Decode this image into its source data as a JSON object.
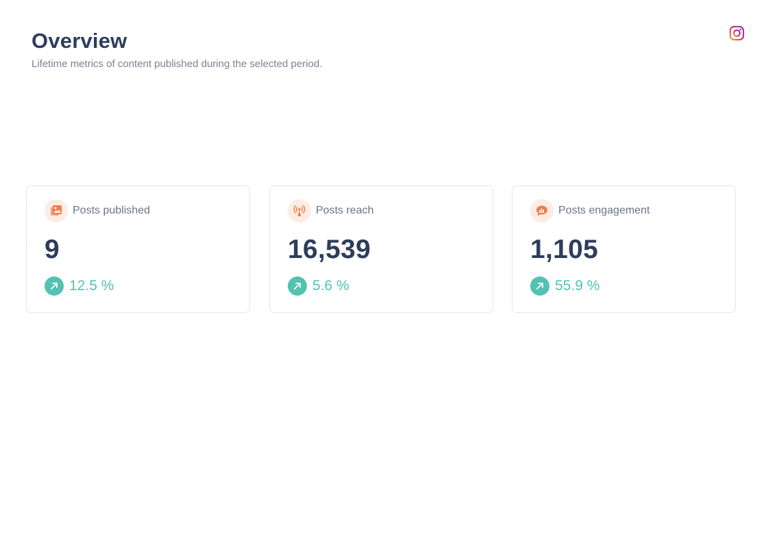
{
  "header": {
    "title": "Overview",
    "subtitle": "Lifetime metrics of content published during the selected period.",
    "platform_icon": "instagram-icon"
  },
  "metrics": [
    {
      "label": "Posts published",
      "value": "9",
      "change": "12.5 %",
      "trend": "up",
      "icon": "image-gallery-icon"
    },
    {
      "label": "Posts reach",
      "value": "16,539",
      "change": "5.6 %",
      "trend": "up",
      "icon": "broadcast-antenna-icon"
    },
    {
      "label": "Posts engagement",
      "value": "1,105",
      "change": "55.9 %",
      "trend": "up",
      "icon": "chat-bubble-chart-icon"
    }
  ],
  "colors": {
    "title": "#2e3d5c",
    "subtitle": "#7a8294",
    "accent_orange": "#f07d4a",
    "icon_bg": "#fdece4",
    "positive": "#52c2b2",
    "card_border": "#e3e6eb"
  }
}
